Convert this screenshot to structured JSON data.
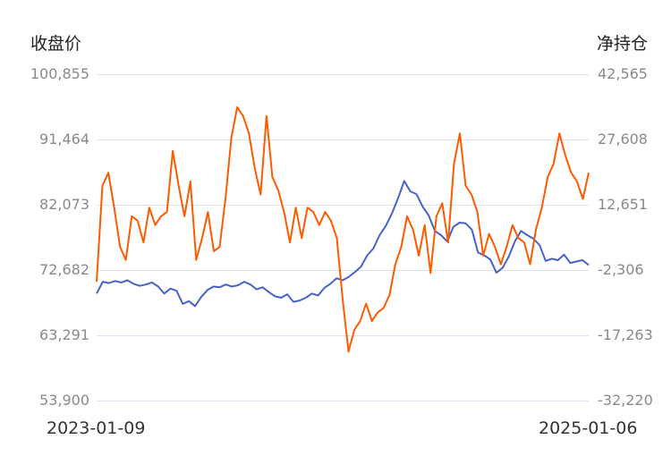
{
  "chart_data": {
    "type": "line",
    "title": "",
    "left_axis": {
      "label": "收盘价",
      "ticks": [
        "100,855",
        "91,464",
        "82,073",
        "72,682",
        "63,291",
        "53,900"
      ],
      "tick_values": [
        100855,
        91464,
        82073,
        72682,
        63291,
        53900
      ],
      "ylim": [
        53900,
        100855
      ]
    },
    "right_axis": {
      "label": "净持仓",
      "ticks": [
        "42,565",
        "27,608",
        "12,651",
        "-2,306",
        "-17,263",
        "-32,220"
      ],
      "tick_values": [
        42565,
        27608,
        12651,
        -2306,
        -17263,
        -32220
      ],
      "ylim": [
        -32220,
        42565
      ]
    },
    "x": {
      "start_label": "2023-01-09",
      "end_label": "2025-01-06",
      "range": [
        "2023-01-09",
        "2025-01-06"
      ]
    },
    "grid": true,
    "legend": "none",
    "series": [
      {
        "name": "收盘价",
        "axis": "left",
        "color": "#4763c9",
        "approx_values_sampled": [
          69300,
          71000,
          70800,
          71100,
          70900,
          71200,
          70700,
          70400,
          70600,
          70900,
          70300,
          69300,
          70000,
          69700,
          67800,
          68200,
          67500,
          68800,
          69800,
          70300,
          70200,
          70600,
          70300,
          70500,
          71000,
          70600,
          69900,
          70200,
          69500,
          68900,
          68700,
          69200,
          68100,
          68300,
          68700,
          69300,
          69000,
          70100,
          70700,
          71500,
          71200,
          71700,
          72400,
          73200,
          74800,
          75800,
          77700,
          79000,
          80800,
          83000,
          85500,
          84000,
          83600,
          81800,
          80500,
          78300,
          77700,
          76800,
          78900,
          79500,
          79400,
          78500,
          75200,
          74800,
          74200,
          72300,
          73000,
          74600,
          76800,
          78300,
          77700,
          77200,
          76300,
          74000,
          74300,
          74100,
          74900,
          73700,
          73900,
          74100,
          73400
        ]
      },
      {
        "name": "净持仓",
        "axis": "right",
        "color": "#ff5a00",
        "approx_values_sampled": [
          -5000,
          17000,
          20000,
          12000,
          3000,
          0,
          10000,
          9000,
          4000,
          12000,
          8000,
          10000,
          11000,
          25000,
          17000,
          10000,
          18000,
          0,
          5000,
          11000,
          2000,
          3000,
          14000,
          28000,
          35000,
          33000,
          29000,
          21000,
          15000,
          33000,
          19000,
          16000,
          11000,
          4000,
          12000,
          5000,
          12000,
          11000,
          8000,
          11000,
          9000,
          5000,
          -9000,
          -21000,
          -16000,
          -14000,
          -10000,
          -14000,
          -12000,
          -11000,
          -8000,
          -1000,
          3000,
          10000,
          7000,
          1000,
          8000,
          -3000,
          10000,
          13000,
          4000,
          22000,
          29000,
          17000,
          15000,
          11000,
          1000,
          6000,
          3000,
          -1000,
          3000,
          8000,
          5000,
          4000,
          -1000,
          7000,
          12000,
          19000,
          22000,
          29000,
          24000,
          20000,
          18000,
          14000,
          20000
        ]
      }
    ]
  },
  "page": {
    "left_axis_title": "收盘价",
    "right_axis_title": "净持仓",
    "x_start": "2023-01-09",
    "x_end": "2025-01-06"
  }
}
